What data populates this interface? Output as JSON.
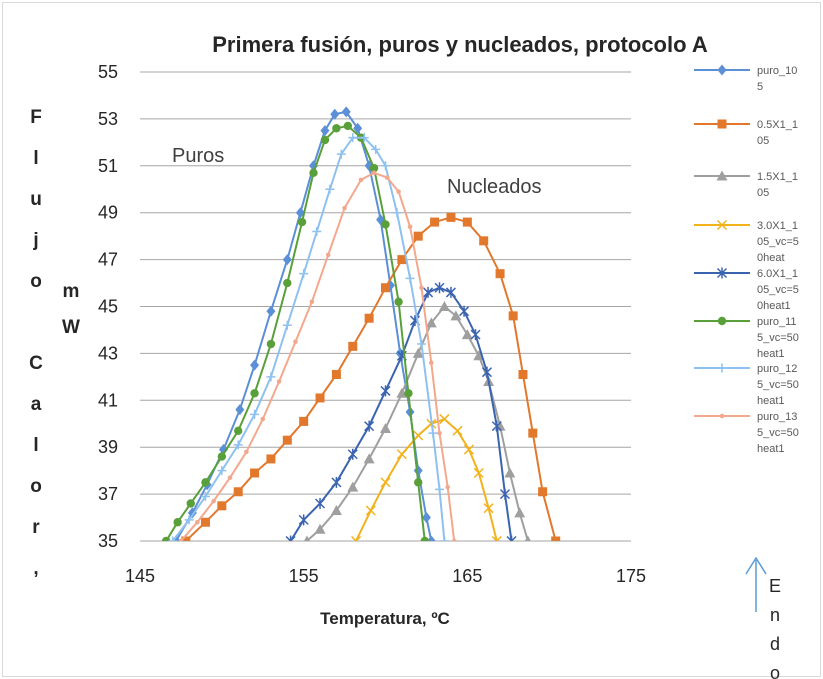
{
  "chart_data": {
    "type": "line",
    "title": "Primera fusión, puros y nucleados, protocolo  A",
    "xlabel": "Temperatura, ºC",
    "ylabel_chars": [
      "F",
      "l",
      "u",
      "j",
      "o",
      "",
      "C",
      "a",
      "l",
      "o",
      "r",
      ","
    ],
    "ylabel_unit_chars": [
      "m",
      "W"
    ],
    "xlim": [
      145,
      175
    ],
    "ylim": [
      35,
      55
    ],
    "x_ticks": [
      145,
      155,
      165,
      175
    ],
    "y_ticks": [
      35,
      37,
      39,
      41,
      43,
      45,
      47,
      49,
      51,
      53,
      55
    ],
    "grid": "horizontal",
    "legend_position": "right",
    "annotations": {
      "puros": "Puros",
      "nucleados": "Nucleados"
    },
    "side_label_chars": [
      "E",
      "n",
      "d",
      "o"
    ],
    "series": [
      {
        "name": "puro_10\n5",
        "color": "#5b8fd6",
        "marker": "diamond",
        "points": [
          [
            147.2,
            35
          ],
          [
            148.2,
            36.2
          ],
          [
            149.1,
            37.4
          ],
          [
            150.1,
            38.9
          ],
          [
            151.1,
            40.6
          ],
          [
            152.0,
            42.5
          ],
          [
            153.0,
            44.8
          ],
          [
            154.0,
            47.0
          ],
          [
            154.8,
            49.0
          ],
          [
            155.6,
            51.0
          ],
          [
            156.3,
            52.5
          ],
          [
            156.9,
            53.2
          ],
          [
            157.6,
            53.3
          ],
          [
            158.3,
            52.6
          ],
          [
            159.0,
            51.0
          ],
          [
            159.7,
            48.7
          ],
          [
            160.3,
            45.9
          ],
          [
            160.9,
            43.0
          ],
          [
            161.5,
            40.5
          ],
          [
            162.0,
            38.0
          ],
          [
            162.5,
            36.0
          ],
          [
            162.8,
            35
          ]
        ]
      },
      {
        "name": "0.5X1_1\n05",
        "color": "#e2782b",
        "marker": "square",
        "points": [
          [
            147.8,
            35
          ],
          [
            149.0,
            35.8
          ],
          [
            150.0,
            36.5
          ],
          [
            151.0,
            37.1
          ],
          [
            152.0,
            37.9
          ],
          [
            153.0,
            38.5
          ],
          [
            154.0,
            39.3
          ],
          [
            155.0,
            40.1
          ],
          [
            156.0,
            41.1
          ],
          [
            157.0,
            42.1
          ],
          [
            158.0,
            43.3
          ],
          [
            159.0,
            44.5
          ],
          [
            160.0,
            45.8
          ],
          [
            161.0,
            47.0
          ],
          [
            162.0,
            48.0
          ],
          [
            163.0,
            48.6
          ],
          [
            164.0,
            48.8
          ],
          [
            165.0,
            48.6
          ],
          [
            166.0,
            47.8
          ],
          [
            167.0,
            46.4
          ],
          [
            167.8,
            44.6
          ],
          [
            168.4,
            42.1
          ],
          [
            169.0,
            39.6
          ],
          [
            169.6,
            37.1
          ],
          [
            170.4,
            35
          ]
        ]
      },
      {
        "name": "1.5X1_1\n05",
        "color": "#9f9f9f",
        "marker": "triangle",
        "points": [
          [
            155.2,
            35
          ],
          [
            156.0,
            35.5
          ],
          [
            157.0,
            36.3
          ],
          [
            158.0,
            37.3
          ],
          [
            159.0,
            38.5
          ],
          [
            160.0,
            39.8
          ],
          [
            161.0,
            41.3
          ],
          [
            162.0,
            43.0
          ],
          [
            162.8,
            44.3
          ],
          [
            163.6,
            45.0
          ],
          [
            164.3,
            44.6
          ],
          [
            165.0,
            43.8
          ],
          [
            165.7,
            42.9
          ],
          [
            166.3,
            41.8
          ],
          [
            167.0,
            39.9
          ],
          [
            167.6,
            37.9
          ],
          [
            168.2,
            36.2
          ],
          [
            168.7,
            35
          ]
        ]
      },
      {
        "name": "3.0X1_1\n05_vc=5\n0heat",
        "color": "#f2b21b",
        "marker": "x",
        "points": [
          [
            158.2,
            35
          ],
          [
            159.1,
            36.3
          ],
          [
            160.0,
            37.5
          ],
          [
            161.0,
            38.7
          ],
          [
            162.0,
            39.5
          ],
          [
            162.8,
            40.0
          ],
          [
            163.6,
            40.2
          ],
          [
            164.4,
            39.7
          ],
          [
            165.1,
            38.9
          ],
          [
            165.7,
            37.9
          ],
          [
            166.3,
            36.4
          ],
          [
            166.8,
            35
          ]
        ]
      },
      {
        "name": "6.0X1_1\n05_vc=5\n0heat1",
        "color": "#3b64b0",
        "marker": "star",
        "points": [
          [
            154.2,
            35
          ],
          [
            155.0,
            35.9
          ],
          [
            156.0,
            36.6
          ],
          [
            157.0,
            37.5
          ],
          [
            158.0,
            38.7
          ],
          [
            159.0,
            39.9
          ],
          [
            160.0,
            41.4
          ],
          [
            161.0,
            42.9
          ],
          [
            161.8,
            44.4
          ],
          [
            162.6,
            45.6
          ],
          [
            163.3,
            45.8
          ],
          [
            164.0,
            45.6
          ],
          [
            164.8,
            44.8
          ],
          [
            165.5,
            43.8
          ],
          [
            166.2,
            42.2
          ],
          [
            166.8,
            39.9
          ],
          [
            167.3,
            37.0
          ],
          [
            167.7,
            35
          ]
        ]
      },
      {
        "name": "puro_11\n5_vc=50\nheat1",
        "color": "#5aa03a",
        "marker": "circle",
        "points": [
          [
            146.6,
            35
          ],
          [
            147.3,
            35.8
          ],
          [
            148.1,
            36.6
          ],
          [
            149.0,
            37.5
          ],
          [
            150.0,
            38.6
          ],
          [
            151.0,
            39.7
          ],
          [
            152.0,
            41.3
          ],
          [
            153.0,
            43.4
          ],
          [
            154.0,
            46.0
          ],
          [
            154.9,
            48.6
          ],
          [
            155.6,
            50.7
          ],
          [
            156.3,
            52.1
          ],
          [
            157.0,
            52.6
          ],
          [
            157.7,
            52.7
          ],
          [
            158.5,
            52.2
          ],
          [
            159.3,
            50.9
          ],
          [
            160.0,
            48.5
          ],
          [
            160.8,
            45.2
          ],
          [
            161.4,
            41.3
          ],
          [
            162.0,
            37.5
          ],
          [
            162.4,
            35
          ]
        ]
      },
      {
        "name": "puro_12\n5_vc=50\nheat1",
        "color": "#8ec1f0",
        "marker": "plus",
        "points": [
          [
            147.0,
            35
          ],
          [
            148.0,
            35.9
          ],
          [
            149.0,
            36.9
          ],
          [
            150.0,
            38.0
          ],
          [
            151.0,
            39.1
          ],
          [
            152.0,
            40.4
          ],
          [
            153.0,
            42.0
          ],
          [
            154.0,
            44.2
          ],
          [
            155.0,
            46.4
          ],
          [
            155.8,
            48.2
          ],
          [
            156.6,
            50.0
          ],
          [
            157.3,
            51.5
          ],
          [
            158.0,
            52.2
          ],
          [
            158.7,
            52.2
          ],
          [
            159.4,
            51.7
          ],
          [
            160.0,
            51.0
          ],
          [
            160.7,
            49.0
          ],
          [
            161.5,
            46.2
          ],
          [
            162.2,
            43.4
          ],
          [
            162.9,
            39.6
          ],
          [
            163.3,
            37.2
          ],
          [
            163.6,
            35
          ]
        ]
      },
      {
        "name": "puro_13\n5_vc=50\nheat1",
        "color": "#f3a88e",
        "marker": "dot",
        "points": [
          [
            147.5,
            35
          ],
          [
            148.5,
            35.8
          ],
          [
            149.5,
            36.7
          ],
          [
            150.5,
            37.7
          ],
          [
            151.5,
            38.8
          ],
          [
            152.5,
            40.2
          ],
          [
            153.5,
            41.8
          ],
          [
            154.5,
            43.5
          ],
          [
            155.5,
            45.2
          ],
          [
            156.5,
            47.2
          ],
          [
            157.5,
            49.2
          ],
          [
            158.5,
            50.4
          ],
          [
            159.3,
            50.7
          ],
          [
            160.1,
            50.5
          ],
          [
            160.8,
            49.9
          ],
          [
            161.5,
            48.4
          ],
          [
            162.2,
            45.8
          ],
          [
            162.8,
            42.6
          ],
          [
            163.3,
            39.6
          ],
          [
            163.8,
            37.3
          ],
          [
            164.2,
            35
          ]
        ]
      }
    ]
  }
}
